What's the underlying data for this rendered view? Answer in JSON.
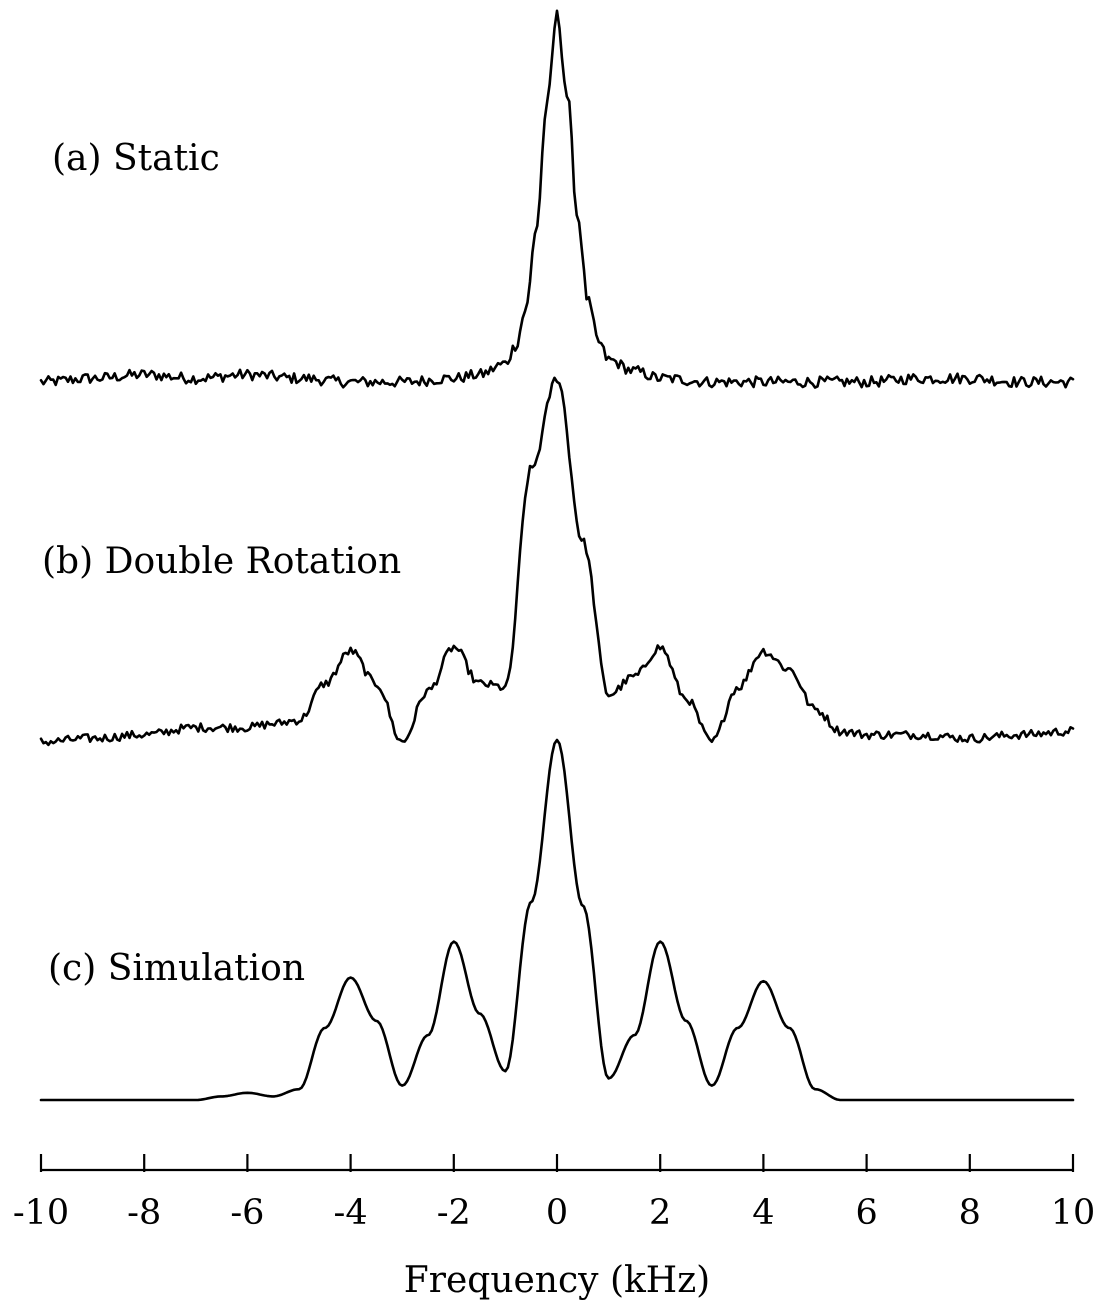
{
  "chart_data": {
    "type": "line",
    "xlabel": "Frequency (kHz)",
    "xlim": [
      -10,
      10
    ],
    "xticks": [
      -10,
      -8,
      -6,
      -4,
      -2,
      0,
      2,
      4,
      6,
      8,
      10
    ],
    "tick_labels": [
      "-10",
      "-8",
      "-6",
      "-4",
      "-2",
      "0",
      "2",
      "4",
      "6",
      "8",
      "10"
    ],
    "y_units": "relative intensity (stacked spectra)",
    "grid": false,
    "panels": [
      {
        "label": "(a) Static",
        "x": [
          -10,
          -9,
          -8,
          -7,
          -6,
          -5,
          -4,
          -3,
          -2,
          -1.5,
          -1,
          -0.8,
          -0.6,
          -0.4,
          -0.2,
          0,
          0.2,
          0.4,
          0.6,
          0.8,
          1,
          1.5,
          2,
          3,
          4,
          5,
          6,
          7,
          8,
          9,
          10
        ],
        "y": [
          0.0,
          0.01,
          0.02,
          0.01,
          0.02,
          0.01,
          0.0,
          0.0,
          0.01,
          0.02,
          0.05,
          0.1,
          0.2,
          0.42,
          0.75,
          1.0,
          0.78,
          0.45,
          0.22,
          0.11,
          0.06,
          0.03,
          0.01,
          0.0,
          0.0,
          0.0,
          0.0,
          0.01,
          0.01,
          0.0,
          0.0
        ],
        "noise": 0.015
      },
      {
        "label": "(b) Double Rotation",
        "x": [
          -10,
          -9,
          -8,
          -7,
          -6,
          -5.5,
          -5,
          -4.5,
          -4,
          -3.5,
          -3,
          -2.5,
          -2,
          -1.5,
          -1,
          -0.5,
          0,
          0.5,
          1,
          1.5,
          2,
          2.5,
          3,
          3.5,
          4,
          4.5,
          5,
          5.5,
          6,
          7,
          8,
          9,
          10
        ],
        "y": [
          0.0,
          0.01,
          0.02,
          0.04,
          0.04,
          0.05,
          0.06,
          0.16,
          0.25,
          0.16,
          0.0,
          0.14,
          0.26,
          0.16,
          0.15,
          0.75,
          1.0,
          0.55,
          0.13,
          0.18,
          0.26,
          0.12,
          0.0,
          0.15,
          0.25,
          0.2,
          0.09,
          0.03,
          0.02,
          0.02,
          0.01,
          0.02,
          0.03
        ],
        "noise": 0.012
      },
      {
        "label": "(c) Simulation",
        "x": [
          -10,
          -7,
          -6.5,
          -6,
          -5.5,
          -5,
          -4.5,
          -4,
          -3.5,
          -3,
          -2.5,
          -2,
          -1.5,
          -1,
          -0.5,
          0,
          0.5,
          1,
          1.5,
          2,
          2.5,
          3,
          3.5,
          4,
          4.5,
          5,
          5.5,
          6,
          7,
          10
        ],
        "y": [
          0.0,
          0.0,
          0.01,
          0.02,
          0.01,
          0.03,
          0.2,
          0.34,
          0.22,
          0.04,
          0.18,
          0.44,
          0.24,
          0.08,
          0.55,
          1.0,
          0.54,
          0.06,
          0.18,
          0.44,
          0.22,
          0.04,
          0.2,
          0.33,
          0.2,
          0.03,
          0.0,
          0.0,
          0.0,
          0.0
        ],
        "noise": 0
      }
    ]
  }
}
